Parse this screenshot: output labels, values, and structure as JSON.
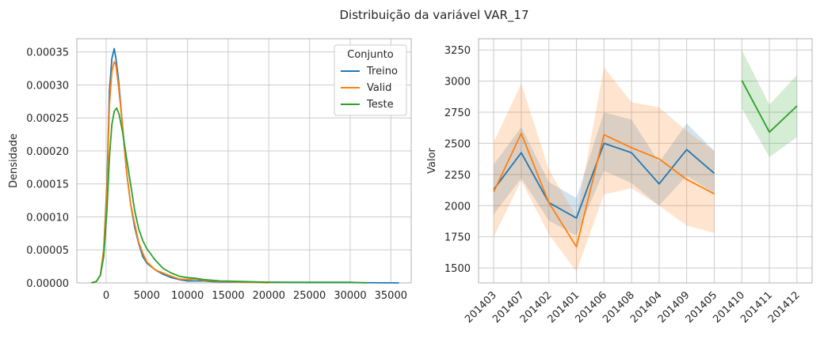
{
  "figure": {
    "title": "Distribuição da variável VAR_17"
  },
  "colors": {
    "Treino": "#1f77b4",
    "Valid": "#ff7f0e",
    "Teste": "#2ca02c",
    "grid": "#cccccc",
    "axes": "#b0b0b0"
  },
  "chart_data": [
    {
      "type": "line",
      "kind": "kde",
      "title": "",
      "xlabel": "",
      "ylabel": "Densidade",
      "xlim": [
        -3600,
        37500
      ],
      "ylim": [
        0,
        0.00037
      ],
      "xticks": [
        0,
        5000,
        10000,
        15000,
        20000,
        25000,
        30000,
        35000
      ],
      "xtick_labels": [
        "0",
        "5000",
        "10000",
        "15000",
        "20000",
        "25000",
        "30000",
        "35000"
      ],
      "yticks": [
        0,
        5e-05,
        0.0001,
        0.00015,
        0.0002,
        0.00025,
        0.0003,
        0.00035
      ],
      "ytick_labels": [
        "0.00000",
        "0.00005",
        "0.00010",
        "0.00015",
        "0.00020",
        "0.00025",
        "0.00030",
        "0.00035"
      ],
      "grid": true,
      "legend": {
        "title": "Conjunto",
        "placement": "top-right",
        "entries": [
          "Treino",
          "Valid",
          "Teste"
        ]
      },
      "series": [
        {
          "name": "Treino",
          "x": [
            -1800,
            -1200,
            -700,
            -300,
            100,
            400,
            700,
            1000,
            1200,
            1500,
            2000,
            2500,
            3000,
            3500,
            4000,
            4500,
            5000,
            6000,
            7000,
            8000,
            9000,
            10000,
            11000,
            12000,
            13000,
            15000,
            20000,
            25000,
            30000,
            36000
          ],
          "y": [
            0,
            2e-06,
            1.2e-05,
            5e-05,
            0.00015,
            0.00029,
            0.00034,
            0.000355,
            0.00034,
            0.00031,
            0.00024,
            0.00017,
            0.00012,
            8.5e-05,
            6e-05,
            4e-05,
            3e-05,
            2e-05,
            1.3e-05,
            8e-06,
            5e-06,
            3e-06,
            3e-06,
            3e-06,
            2e-06,
            1.5e-06,
            1e-06,
            5e-07,
            5e-07,
            0
          ]
        },
        {
          "name": "Valid",
          "x": [
            -1800,
            -1200,
            -700,
            -300,
            100,
            400,
            700,
            1000,
            1200,
            1500,
            2000,
            2500,
            3000,
            3500,
            4000,
            4500,
            5000,
            6000,
            7000,
            8000,
            9000,
            10000,
            11000,
            12000,
            13000,
            15000,
            18000,
            20000
          ],
          "y": [
            0,
            2e-06,
            1.2e-05,
            5e-05,
            0.00014,
            0.00027,
            0.00032,
            0.000335,
            0.00033,
            0.0003,
            0.00024,
            0.00017,
            0.00012,
            9e-05,
            6.2e-05,
            4.5e-05,
            3.2e-05,
            2e-05,
            1.5e-05,
            1e-05,
            6e-06,
            5e-06,
            6e-06,
            4e-06,
            3e-06,
            2e-06,
            1e-06,
            0
          ]
        },
        {
          "name": "Teste",
          "x": [
            -1800,
            -1200,
            -700,
            -300,
            100,
            400,
            700,
            1000,
            1300,
            1600,
            2000,
            2500,
            3000,
            3500,
            4000,
            4500,
            5000,
            6000,
            7000,
            8000,
            9000,
            10000,
            11000,
            12000,
            14000,
            17000,
            20000,
            25000,
            30000,
            32000
          ],
          "y": [
            0,
            2e-06,
            1.2e-05,
            4e-05,
            0.00011,
            0.00019,
            0.00024,
            0.00026,
            0.000265,
            0.000255,
            0.00023,
            0.00019,
            0.00015,
            0.00011,
            8.2e-05,
            6.4e-05,
            5.2e-05,
            3.5e-05,
            2.2e-05,
            1.5e-05,
            1e-05,
            8e-06,
            7e-06,
            5e-06,
            3e-06,
            2e-06,
            1e-06,
            1e-06,
            1e-06,
            0
          ]
        }
      ]
    },
    {
      "type": "line",
      "title": "",
      "xlabel": "",
      "ylabel": "Valor",
      "ylim": [
        1380,
        3340
      ],
      "yticks": [
        1500,
        1750,
        2000,
        2250,
        2500,
        2750,
        3000,
        3250
      ],
      "ytick_labels": [
        "1500",
        "1750",
        "2000",
        "2250",
        "2500",
        "2750",
        "3000",
        "3250"
      ],
      "categories": [
        "201403",
        "201407",
        "201402",
        "201401",
        "201406",
        "201408",
        "201404",
        "201409",
        "201405",
        "201410",
        "201411",
        "201412"
      ],
      "grid": true,
      "series": [
        {
          "name": "Treino",
          "values": [
            2130,
            2425,
            2025,
            1900,
            2500,
            2425,
            2175,
            2450,
            2260,
            null,
            null,
            null
          ],
          "ci_low": [
            1930,
            2220,
            1880,
            1760,
            2280,
            2180,
            2000,
            2240,
            2100,
            null,
            null,
            null
          ],
          "ci_high": [
            2330,
            2630,
            2190,
            2060,
            2750,
            2690,
            2350,
            2660,
            2440,
            null,
            null,
            null
          ]
        },
        {
          "name": "Valid",
          "values": [
            2110,
            2580,
            2025,
            1670,
            2570,
            2465,
            2375,
            2210,
            2095,
            null,
            null,
            null
          ],
          "ci_low": [
            1750,
            2200,
            1770,
            1470,
            2090,
            2140,
            2000,
            1840,
            1780,
            null,
            null,
            null
          ],
          "ci_high": [
            2510,
            2980,
            2290,
            1910,
            3110,
            2830,
            2790,
            2600,
            2440,
            null,
            null,
            null
          ]
        },
        {
          "name": "Teste",
          "values": [
            null,
            null,
            null,
            null,
            null,
            null,
            null,
            null,
            null,
            3005,
            2590,
            2800
          ],
          "ci_low": [
            null,
            null,
            null,
            null,
            null,
            null,
            null,
            null,
            null,
            2780,
            2390,
            2550
          ],
          "ci_high": [
            null,
            null,
            null,
            null,
            null,
            null,
            null,
            null,
            null,
            3250,
            2810,
            3050
          ]
        }
      ]
    }
  ]
}
